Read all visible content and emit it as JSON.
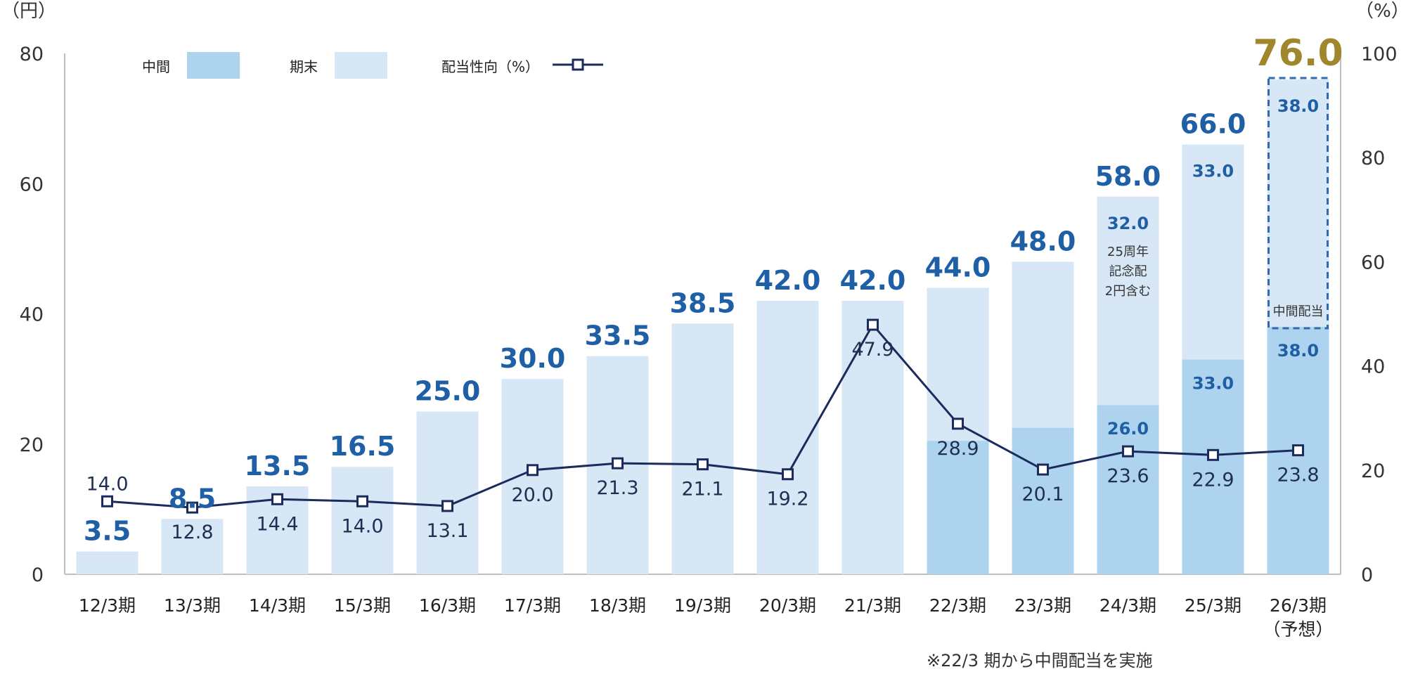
{
  "chart_data": {
    "type": "bar",
    "stacked": true,
    "left_axis_unit": "（円）",
    "right_axis_unit": "（%）",
    "left_ticks": [
      "0",
      "20",
      "40",
      "60",
      "80"
    ],
    "right_ticks": [
      "0",
      "20",
      "40",
      "60",
      "80",
      "100"
    ],
    "ylim": [
      0,
      80
    ],
    "y2lim": [
      0,
      100
    ],
    "categories": [
      "12/3期",
      "13/3期",
      "14/3期",
      "15/3期",
      "16/3期",
      "17/3期",
      "18/3期",
      "19/3期",
      "20/3期",
      "21/3期",
      "22/3期",
      "23/3期",
      "24/3期",
      "25/3期",
      "26/3期"
    ],
    "forecast_sublabel": "（予想）",
    "legend": {
      "interim": "中間",
      "year_end": "期末",
      "ratio": "配当性向（%）"
    },
    "colors": {
      "interim": "#aed3ef",
      "year_end": "#d7e7f6",
      "ratio_line": "#1a2b5c",
      "total_label": "#1f5fa6",
      "forecast_label": "#a0862c",
      "axis": "#bfbfbf"
    },
    "series": [
      {
        "name": "中間",
        "values": [
          0,
          0,
          0,
          0,
          0,
          0,
          0,
          0,
          0,
          0,
          20.5,
          22.5,
          26.0,
          33.0,
          38.0
        ]
      },
      {
        "name": "期末",
        "values": [
          3.5,
          8.5,
          13.5,
          16.5,
          25.0,
          30.0,
          33.5,
          38.5,
          42.0,
          42.0,
          23.5,
          25.5,
          32.0,
          33.0,
          38.0
        ]
      },
      {
        "name": "配当性向（%）",
        "axis": "right",
        "type": "line",
        "values": [
          14.0,
          12.8,
          14.4,
          14.0,
          13.1,
          20.0,
          21.3,
          21.1,
          19.2,
          47.9,
          28.9,
          20.1,
          23.6,
          22.9,
          23.8
        ]
      }
    ],
    "total_labels": [
      "3.5",
      "8.5",
      "13.5",
      "16.5",
      "25.0",
      "30.0",
      "33.5",
      "38.5",
      "42.0",
      "42.0",
      "44.0",
      "48.0",
      "58.0",
      "66.0",
      "76.0"
    ],
    "ratio_labels": [
      "14.0",
      "12.8",
      "14.4",
      "14.0",
      "13.1",
      "20.0",
      "21.3",
      "21.1",
      "19.2",
      "47.9",
      "28.9",
      "20.1",
      "23.6",
      "22.9",
      "23.8"
    ],
    "segment_labels": [
      {
        "index": 12,
        "interim": "26.0",
        "year_end": "32.0"
      },
      {
        "index": 13,
        "interim": "33.0",
        "year_end": "33.0"
      },
      {
        "index": 14,
        "interim": "38.0",
        "year_end": "38.0"
      }
    ],
    "annotations": {
      "anniversary": [
        "25周年",
        "記念配",
        "2円含む"
      ],
      "forecast_box": "中間配当",
      "footnote": "※22/3 期から中間配当を実施"
    }
  }
}
